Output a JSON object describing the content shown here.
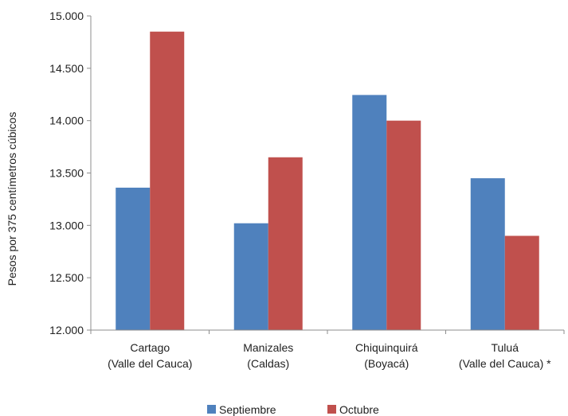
{
  "chart_data": {
    "type": "bar",
    "title": "",
    "xlabel": "",
    "ylabel": "Pesos por 375 centímetros cúbicos",
    "ylim": [
      12000,
      15000
    ],
    "yticks": [
      12000,
      12500,
      13000,
      13500,
      14000,
      14500,
      15000
    ],
    "ytick_labels": [
      "12.000",
      "12.500",
      "13.000",
      "13.500",
      "14.000",
      "14.500",
      "15.000"
    ],
    "categories": [
      [
        "Cartago",
        "(Valle del Cauca)"
      ],
      [
        "Manizales",
        "(Caldas)"
      ],
      [
        "Chiquinquirá",
        "(Boyacá)"
      ],
      [
        "Tuluá",
        "(Valle del Cauca) *"
      ]
    ],
    "series": [
      {
        "name": "Septiembre",
        "color": "#4f81bd",
        "values": [
          13360,
          13020,
          14245,
          13450
        ]
      },
      {
        "name": "Octubre",
        "color": "#c0504d",
        "values": [
          14850,
          13650,
          14000,
          12900
        ]
      }
    ],
    "grid": false,
    "legend_position": "bottom"
  }
}
